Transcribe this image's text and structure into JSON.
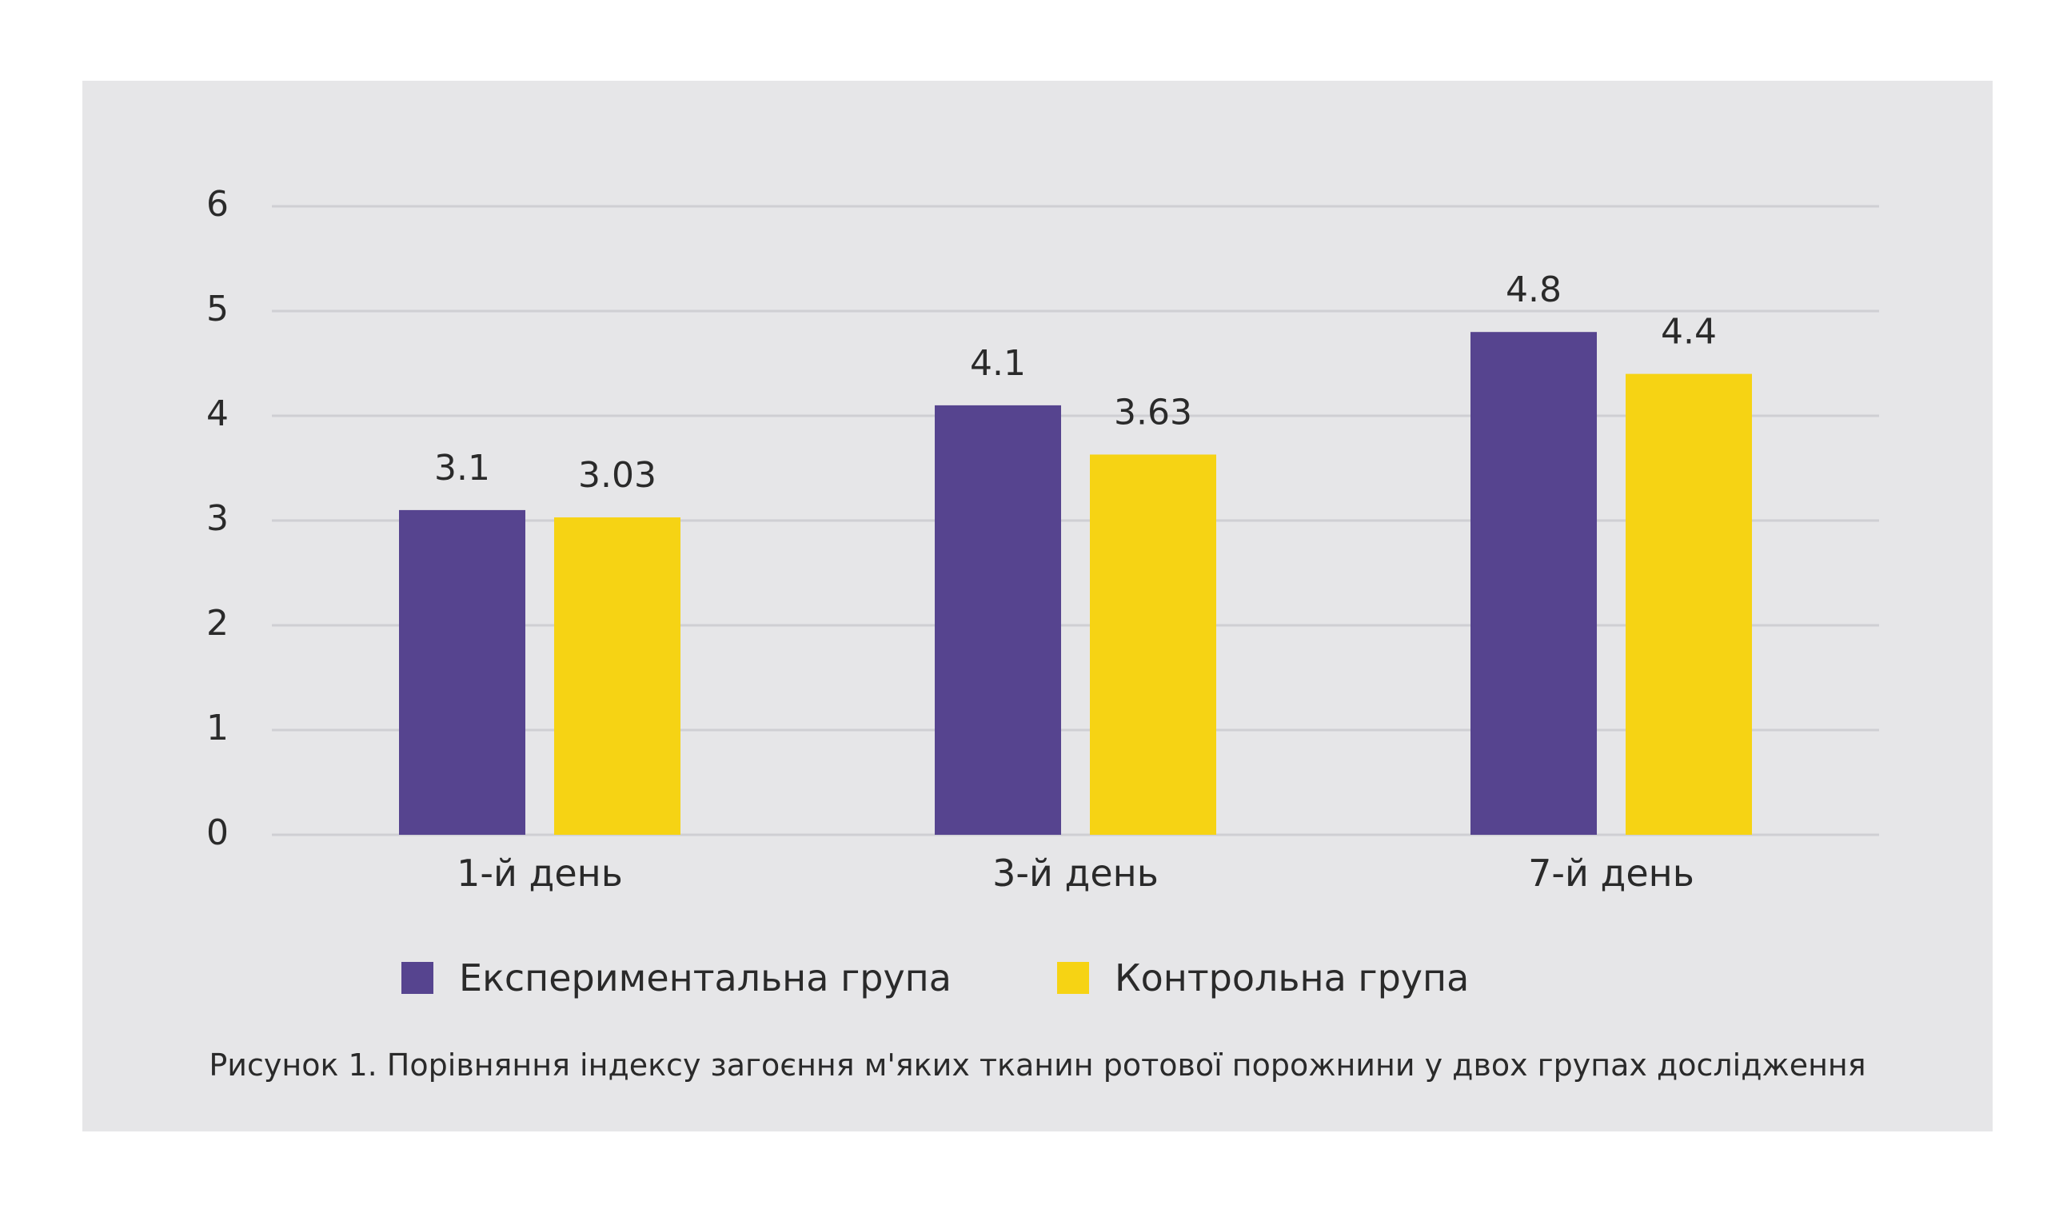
{
  "colors": {
    "experimental": "#56448f",
    "control": "#f6d314",
    "panel_background": "#e6e6e8",
    "grid": "#cfcfd3",
    "text": "#2a2a2a"
  },
  "legend": {
    "experimental_label": "Експериментальна група",
    "control_label": "Контрольна група"
  },
  "caption": "Рисунок 1. Порівняння індексу загоєння м'яких тканин ротової порожнини у двох групах дослідження",
  "chart_data": {
    "type": "bar",
    "title": "",
    "xlabel": "",
    "ylabel": "",
    "categories": [
      "1-й день",
      "3-й день",
      "7-й день"
    ],
    "series": [
      {
        "name": "Експериментальна група",
        "values": [
          3.1,
          4.1,
          4.8
        ],
        "labels": [
          "3.1",
          "4.1",
          "4.8"
        ],
        "color": "#56448f"
      },
      {
        "name": "Контрольна група",
        "values": [
          3.03,
          3.63,
          4.4
        ],
        "labels": [
          "3.03",
          "3.63",
          "4.4"
        ],
        "color": "#f6d314"
      }
    ],
    "y_ticks": [
      "0",
      "1",
      "2",
      "3",
      "4",
      "5",
      "6"
    ],
    "ylim": [
      0,
      6
    ],
    "grid": true,
    "legend_position": "bottom"
  }
}
